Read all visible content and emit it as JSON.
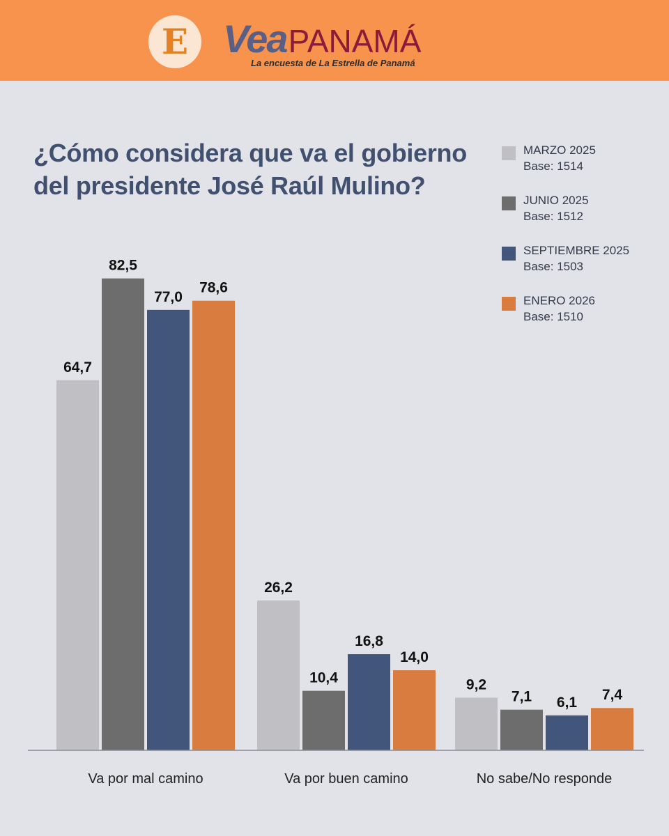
{
  "header": {
    "logo_letter": "E",
    "brand_vea": "Vea",
    "brand_panama": "PANAMÁ",
    "tagline": "La encuesta de La Estrella de Panamá",
    "background_color": "#f7934c"
  },
  "legend": [
    {
      "label": "MARZO 2025",
      "base": "Base: 1514",
      "color": "#c0bfc3"
    },
    {
      "label": "JUNIO 2025",
      "base": "Base: 1512",
      "color": "#6d6d6d"
    },
    {
      "label": "SEPTIEMBRE 2025",
      "base": "Base: 1503",
      "color": "#42557a"
    },
    {
      "label": "ENERO 2026",
      "base": "Base: 1510",
      "color": "#d97c40"
    }
  ],
  "chart_data": {
    "type": "bar",
    "title": "¿Cómo considera que va el gobierno del presidente José Raúl Mulino?",
    "categories": [
      "Va por mal camino",
      "Va por buen camino",
      "No sabe/No responde"
    ],
    "series": [
      {
        "name": "MARZO 2025",
        "values": [
          64.7,
          26.2,
          9.2
        ],
        "labels": [
          "64,7",
          "26,2",
          "9,2"
        ],
        "color": "#c0bfc3"
      },
      {
        "name": "JUNIO 2025",
        "values": [
          82.5,
          10.4,
          7.1
        ],
        "labels": [
          "82,5",
          "10,4",
          "7,1"
        ],
        "color": "#6d6d6d"
      },
      {
        "name": "SEPTIEMBRE 2025",
        "values": [
          77.0,
          16.8,
          6.1
        ],
        "labels": [
          "77,0",
          "16,8",
          "6,1"
        ],
        "color": "#42557a"
      },
      {
        "name": "ENERO 2026",
        "values": [
          78.6,
          14.0,
          7.4
        ],
        "labels": [
          "78,6",
          "14,0",
          "7,4"
        ],
        "color": "#d97c40"
      }
    ],
    "ylim": [
      0,
      100
    ],
    "grid": false,
    "legend_position": "top-right"
  }
}
